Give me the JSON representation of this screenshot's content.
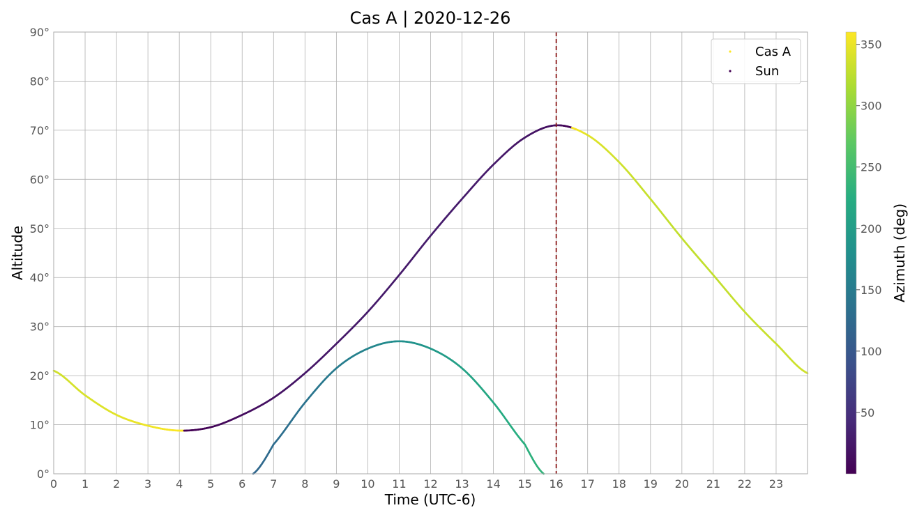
{
  "chart_data": {
    "type": "scatter",
    "title": "Cas A | 2020-12-26",
    "xlabel": "Time (UTC-6)",
    "ylabel": "Altitude",
    "xlim": [
      0,
      24
    ],
    "ylim": [
      0,
      90
    ],
    "x_ticks": [
      "0",
      "1",
      "2",
      "3",
      "4",
      "5",
      "6",
      "7",
      "8",
      "9",
      "10",
      "11",
      "12",
      "13",
      "14",
      "15",
      "16",
      "17",
      "18",
      "19",
      "20",
      "21",
      "22",
      "23"
    ],
    "y_ticks": [
      "0°",
      "10°",
      "20°",
      "30°",
      "40°",
      "50°",
      "60°",
      "70°",
      "80°",
      "90°"
    ],
    "grid": true,
    "legend": {
      "position": "top-right",
      "entries": [
        "Cas A",
        "Sun"
      ]
    },
    "colorbar": {
      "label": "Azimuth (deg)",
      "range": [
        0,
        360
      ],
      "ticks": [
        "50",
        "100",
        "150",
        "200",
        "250",
        "300",
        "350"
      ],
      "colormap": "viridis"
    },
    "vline": {
      "x": 16,
      "color": "#8b1a1a",
      "style": "dashed"
    },
    "series": [
      {
        "name": "Cas A",
        "x": [
          0,
          1,
          2,
          3,
          4,
          5,
          6,
          7,
          8,
          9,
          10,
          11,
          12,
          13,
          14,
          15,
          16,
          17,
          18,
          19,
          20,
          21,
          22,
          23,
          24
        ],
        "y": [
          21,
          16,
          12,
          9.8,
          8.8,
          9.5,
          12,
          15.5,
          20.5,
          26.5,
          33,
          40.5,
          48.5,
          56,
          63,
          68.5,
          71,
          69,
          63.5,
          56,
          48,
          40.5,
          33,
          26.5,
          20.5
        ],
        "azimuth": [
          335,
          340,
          345,
          352,
          359,
          5,
          12,
          18,
          22,
          25,
          27,
          27,
          28,
          28,
          26,
          22,
          15,
          345,
          335,
          330,
          328,
          328,
          330,
          332,
          335
        ]
      },
      {
        "name": "Sun",
        "x": [
          6.35,
          7,
          8,
          9,
          10,
          11,
          12,
          13,
          14,
          15,
          15.6
        ],
        "y": [
          0,
          6,
          14.5,
          21.5,
          25.5,
          27,
          25.5,
          21.5,
          14.5,
          6,
          0
        ],
        "azimuth": [
          120,
          128,
          138,
          150,
          163,
          178,
          192,
          206,
          218,
          228,
          235
        ]
      }
    ]
  }
}
